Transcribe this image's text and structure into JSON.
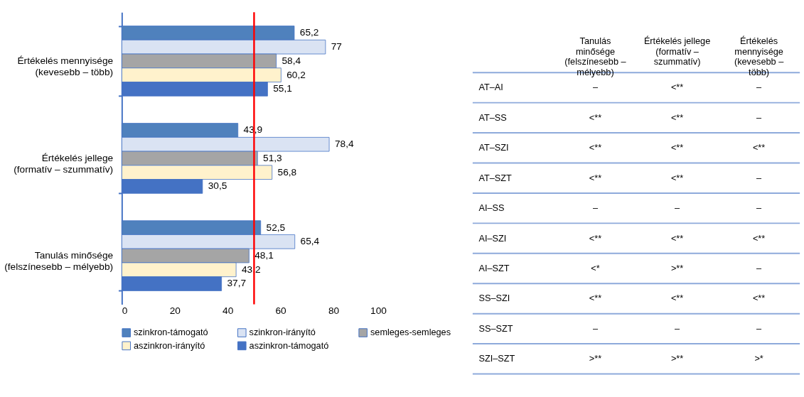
{
  "chart_data": [
    {
      "type": "bar",
      "orientation": "horizontal",
      "categories": [
        "Értékelés mennyisége\n(kevesebb – több)",
        "Értékelés jellege\n(formatív – szummatív)",
        "Tanulás minősége\n(felszínesebb – mélyebb)"
      ],
      "series": [
        {
          "name": "szinkron-támogató",
          "color": "#4f81bd",
          "values": [
            65.2,
            43.9,
            52.5
          ],
          "value_labels": [
            "65,2",
            "43,9",
            "52,5"
          ]
        },
        {
          "name": "szinkron-irányító",
          "color": "#dae3f3",
          "values": [
            77,
            78.4,
            65.4
          ],
          "value_labels": [
            "77",
            "78,4",
            "65,4"
          ]
        },
        {
          "name": "semleges-semleges",
          "color": "#a5a5a5",
          "values": [
            58.4,
            51.3,
            48.1
          ],
          "value_labels": [
            "58,4",
            "51,3",
            "48,1"
          ]
        },
        {
          "name": "aszinkron-irányító",
          "color": "#fff2cc",
          "values": [
            60.2,
            56.8,
            43.2
          ],
          "value_labels": [
            "60,2",
            "56,8",
            "43,2"
          ]
        },
        {
          "name": "aszinkron-támogató",
          "color": "#4472c4",
          "values": [
            55.1,
            30.5,
            37.7
          ],
          "value_labels": [
            "55,1",
            "30,5",
            "37,7"
          ]
        }
      ],
      "xlim": [
        0,
        100
      ],
      "xticks": [
        0,
        20,
        40,
        60,
        80,
        100
      ],
      "ref_lines": [
        {
          "axis": "x",
          "value": 50,
          "color": "#ff0000"
        }
      ],
      "legend": "bottom",
      "grid": false
    },
    {
      "type": "other",
      "categories": [
        "Tanulás\nminősége\n(felszínesebb –\nmélyebb)",
        "Értékelés jellege\n(formatív –\nszummatív)",
        "Értékelés\nmennyisége\n(kevesebb –\ntöbb)"
      ],
      "y_categories": [
        "AT–AI",
        "AT–SS",
        "AT–SZI",
        "AT–SZT",
        "AI–SS",
        "AI–SZI",
        "AI–SZT",
        "SS–SZI",
        "SS–SZT",
        "SZI–SZT"
      ],
      "cell_labels": [
        [
          "–",
          "<**",
          "–"
        ],
        [
          "<**",
          "<**",
          "–"
        ],
        [
          "<**",
          "<**",
          "<**"
        ],
        [
          "<**",
          "<**",
          "–"
        ],
        [
          "–",
          "–",
          "–"
        ],
        [
          "<**",
          "<**",
          "<**"
        ],
        [
          "<*",
          ">**",
          "–"
        ],
        [
          "<**",
          "<**",
          "<**"
        ],
        [
          "–",
          "–",
          "–"
        ],
        [
          ">**",
          ">**",
          ">*"
        ]
      ]
    }
  ]
}
